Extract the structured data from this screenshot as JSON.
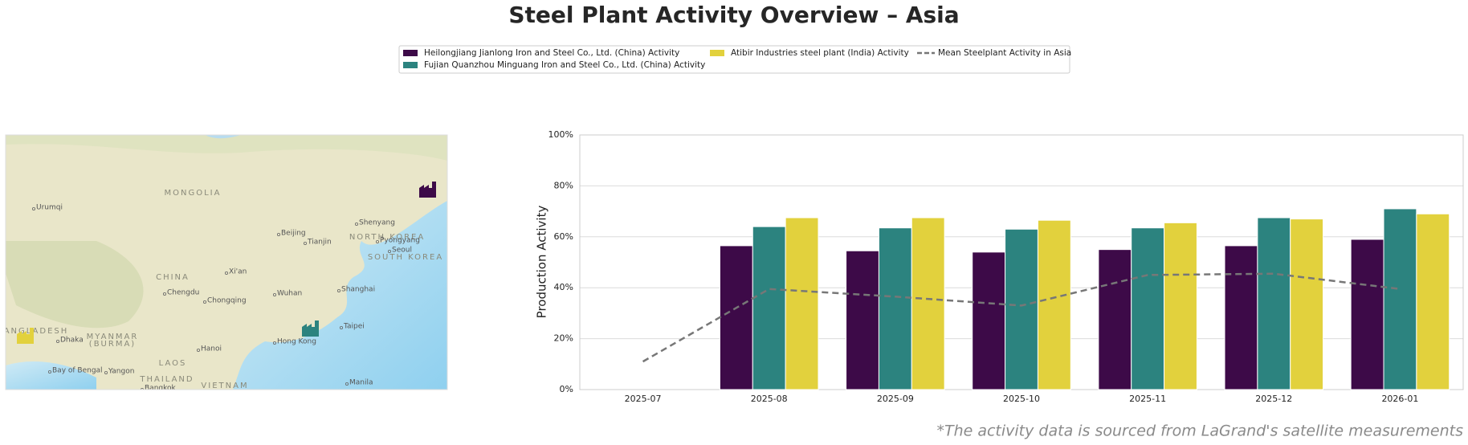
{
  "chart_data": {
    "type": "bar",
    "title": "Steel Plant Activity Overview – Asia",
    "y_label": "Production Activity",
    "annotation": "*The activity data is sourced from LaGrand's satellite measurements",
    "categories": [
      "2025-07",
      "2025-08",
      "2025-09",
      "2025-10",
      "2025-11",
      "2025-12",
      "2026-01"
    ],
    "series": [
      {
        "name": "Heilongjiang Jianlong Iron and Steel Co., Ltd. (China) Activity",
        "color": "#3d0a48",
        "values": [
          null,
          56.5,
          54.5,
          54,
          55,
          56.5,
          59
        ]
      },
      {
        "name": "Fujian Quanzhou Minguang Iron and Steel Co., Ltd. (China) Activity",
        "color": "#2c837f",
        "values": [
          null,
          64,
          63.5,
          63,
          63.5,
          67.5,
          71
        ]
      },
      {
        "name": "Atibir Industries steel plant (India) Activity",
        "color": "#e2d13d",
        "values": [
          null,
          67.5,
          67.5,
          66.5,
          65.5,
          67,
          69
        ]
      },
      {
        "name": "Mean Steelplant Activity in Asia",
        "color": "#777777",
        "type": "line",
        "values": [
          11,
          39.5,
          36.5,
          33,
          45,
          45.5,
          39.5
        ]
      }
    ],
    "ylim": [
      0,
      100
    ],
    "yticks": [
      {
        "value": 0,
        "label": "0%"
      },
      {
        "value": 20,
        "label": "20%"
      },
      {
        "value": 40,
        "label": "40%"
      },
      {
        "value": 60,
        "label": "60%"
      },
      {
        "value": 80,
        "label": "80%"
      },
      {
        "value": 100,
        "label": "100%"
      }
    ],
    "grid": true,
    "legend": "top"
  },
  "map": {
    "labels": [
      "MONGOLIA",
      "Urumqi",
      "Beijing",
      "Tianjin",
      "Shenyang",
      "NORTH KOREA",
      "Pyongyang",
      "Seoul",
      "SOUTH KOREA",
      "CHINA",
      "Xi'an",
      "Chengdu",
      "Chongqing",
      "Wuhan",
      "Shanghai",
      "Taipei",
      "Hong Kong",
      "Hanoi",
      "ANGLADESH",
      "Dhaka",
      "MYANMAR",
      "(BURMA)",
      "LAOS",
      "Yangon",
      "THAILAND",
      "VIETNAM",
      "Bay of Bengal",
      "Bangkok",
      "Manila"
    ]
  }
}
